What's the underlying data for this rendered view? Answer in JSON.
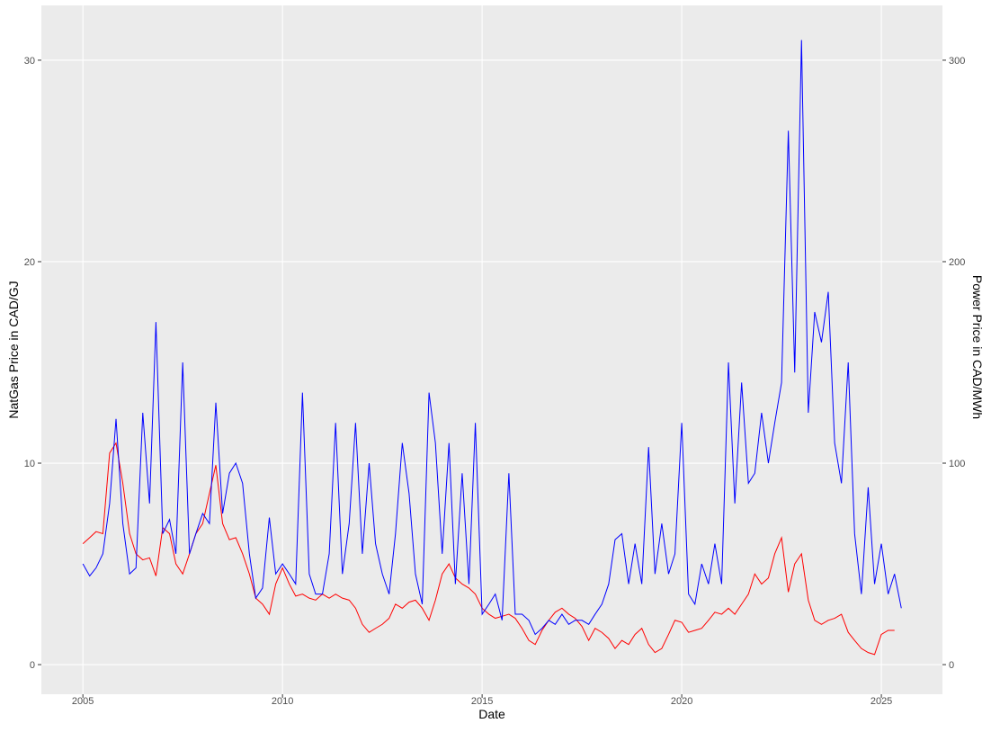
{
  "chart_data": {
    "type": "line",
    "x_label": "Date",
    "y_label": "NatGas Price in CAD/GJ",
    "y2_label": "Power Price in CAD/MWh",
    "x": [
      2005,
      2005.17,
      2005.33,
      2005.5,
      2005.67,
      2005.83,
      2006,
      2006.17,
      2006.33,
      2006.5,
      2006.67,
      2006.83,
      2007,
      2007.17,
      2007.33,
      2007.5,
      2007.67,
      2007.83,
      2008,
      2008.17,
      2008.33,
      2008.5,
      2008.67,
      2008.83,
      2009,
      2009.17,
      2009.33,
      2009.5,
      2009.67,
      2009.83,
      2010,
      2010.17,
      2010.33,
      2010.5,
      2010.67,
      2010.83,
      2011,
      2011.17,
      2011.33,
      2011.5,
      2011.67,
      2011.83,
      2012,
      2012.17,
      2012.33,
      2012.5,
      2012.67,
      2012.83,
      2013,
      2013.17,
      2013.33,
      2013.5,
      2013.67,
      2013.83,
      2014,
      2014.17,
      2014.33,
      2014.5,
      2014.67,
      2014.83,
      2015,
      2015.17,
      2015.33,
      2015.5,
      2015.67,
      2015.83,
      2016,
      2016.17,
      2016.33,
      2016.5,
      2016.67,
      2016.83,
      2017,
      2017.17,
      2017.33,
      2017.5,
      2017.67,
      2017.83,
      2018,
      2018.17,
      2018.33,
      2018.5,
      2018.67,
      2018.83,
      2019,
      2019.17,
      2019.33,
      2019.5,
      2019.67,
      2019.83,
      2020,
      2020.17,
      2020.33,
      2020.5,
      2020.67,
      2020.83,
      2021,
      2021.17,
      2021.33,
      2021.5,
      2021.67,
      2021.83,
      2022,
      2022.17,
      2022.33,
      2022.5,
      2022.67,
      2022.83,
      2023,
      2023.17,
      2023.33,
      2023.5,
      2023.67,
      2023.83,
      2024,
      2024.17,
      2024.33,
      2024.5,
      2024.67,
      2024.83,
      2025,
      2025.17,
      2025.33,
      2025.5
    ],
    "series": [
      {
        "color": "#ff0000",
        "values": [
          6.0,
          6.3,
          6.6,
          6.5,
          10.5,
          11.0,
          9.0,
          6.5,
          5.5,
          5.2,
          5.3,
          4.4,
          6.8,
          6.5,
          5.0,
          4.5,
          5.5,
          6.5,
          7.0,
          8.5,
          9.9,
          7.0,
          6.2,
          6.3,
          5.5,
          4.5,
          3.3,
          3.0,
          2.5,
          4.0,
          4.8,
          4.0,
          3.4,
          3.5,
          3.3,
          3.2,
          3.5,
          3.3,
          3.5,
          3.3,
          3.2,
          2.8,
          2.0,
          1.6,
          1.8,
          2.0,
          2.3,
          3.0,
          2.8,
          3.1,
          3.2,
          2.8,
          2.2,
          3.2,
          4.5,
          5.0,
          4.3,
          4.0,
          3.8,
          3.5,
          2.8,
          2.5,
          2.3,
          2.4,
          2.5,
          2.3,
          1.8,
          1.2,
          1.0,
          1.7,
          2.2,
          2.6,
          2.8,
          2.5,
          2.3,
          1.9,
          1.2,
          1.8,
          1.6,
          1.3,
          0.8,
          1.2,
          1.0,
          1.5,
          1.8,
          1.0,
          0.6,
          0.8,
          1.5,
          2.2,
          2.1,
          1.6,
          1.7,
          1.8,
          2.2,
          2.6,
          2.5,
          2.8,
          2.5,
          3.0,
          3.5,
          4.5,
          4.0,
          4.3,
          5.5,
          6.3,
          3.6,
          5.0,
          5.5,
          3.2,
          2.2,
          2.0,
          2.2,
          2.3,
          2.5,
          1.6,
          1.2,
          0.8,
          0.6,
          0.5,
          1.5,
          1.7,
          1.7,
          null
        ]
      },
      {
        "color": "#0000ff",
        "axis": "y2",
        "values": [
          50,
          44,
          48,
          55,
          80,
          122,
          70,
          45,
          48,
          125,
          80,
          170,
          65,
          72,
          55,
          150,
          55,
          65,
          75,
          70,
          130,
          75,
          95,
          100,
          90,
          55,
          33,
          38,
          73,
          45,
          50,
          45,
          40,
          135,
          45,
          35,
          35,
          55,
          120,
          45,
          70,
          120,
          55,
          100,
          60,
          45,
          35,
          65,
          110,
          85,
          45,
          30,
          135,
          110,
          55,
          110,
          40,
          95,
          40,
          120,
          25,
          30,
          35,
          22,
          95,
          25,
          25,
          22,
          15,
          18,
          22,
          20,
          25,
          20,
          22,
          22,
          20,
          25,
          30,
          40,
          62,
          65,
          40,
          60,
          40,
          108,
          45,
          70,
          45,
          55,
          120,
          35,
          30,
          50,
          40,
          60,
          40,
          150,
          80,
          140,
          90,
          95,
          125,
          100,
          120,
          140,
          265,
          145,
          310,
          125,
          175,
          160,
          185,
          110,
          90,
          150,
          65,
          35,
          88,
          40,
          60,
          35,
          45,
          28
        ]
      }
    ],
    "xlim": [
      2003.96,
      2026.53
    ],
    "xticks": [
      2005,
      2010,
      2015,
      2020,
      2025
    ],
    "ylim": [
      -1.47,
      32.72
    ],
    "yticks": [
      0,
      10,
      20,
      30
    ],
    "y2lim": [
      -14.7,
      327.2
    ],
    "y2ticks": [
      0,
      100,
      200,
      300
    ],
    "grid": true
  }
}
